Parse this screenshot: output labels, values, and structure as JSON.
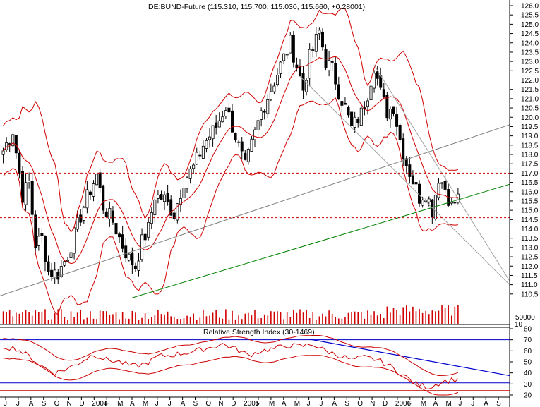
{
  "chart_data": [
    {
      "type": "candlestick",
      "title": "DE:BUND-Future (115.310, 115.700, 115.030, 115.660, +0.28001)",
      "y_axis": {
        "position": "right",
        "range": [
          110.0,
          126.0
        ],
        "ticks": [
          "126.0",
          "125.5",
          "125.0",
          "124.5",
          "124.0",
          "123.5",
          "123.0",
          "122.5",
          "122.0",
          "121.5",
          "121.0",
          "120.5",
          "120.0",
          "119.5",
          "119.0",
          "118.5",
          "118.0",
          "117.5",
          "117.0",
          "116.5",
          "116.0",
          "115.5",
          "115.0",
          "114.5",
          "114.0",
          "113.5",
          "113.0",
          "112.5",
          "112.0",
          "111.5",
          "111.0",
          "110.5"
        ]
      },
      "x_axis": {
        "labels": [
          "J",
          "J",
          "A",
          "S",
          "O",
          "N",
          "D",
          "2004",
          "F",
          "M",
          "A",
          "M",
          "J",
          "J",
          "A",
          "S",
          "O",
          "N",
          "D",
          "2005",
          "F",
          "M",
          "A",
          "M",
          "J",
          "J",
          "A",
          "S",
          "O",
          "N",
          "D",
          "2006",
          "F",
          "M",
          "A",
          "M",
          "J",
          "J",
          "A",
          "S"
        ]
      },
      "grid": false,
      "horizontal_levels": [
        117.0,
        114.6
      ],
      "anchor_series": [
        {
          "t": 0,
          "v": 118.2
        },
        {
          "t": 3,
          "v": 119.3
        },
        {
          "t": 6,
          "v": 115.8
        },
        {
          "t": 8,
          "v": 116.5
        },
        {
          "t": 10,
          "v": 113.2
        },
        {
          "t": 12,
          "v": 113.5
        },
        {
          "t": 14,
          "v": 111.7
        },
        {
          "t": 17,
          "v": 111.6
        },
        {
          "t": 20,
          "v": 112.6
        },
        {
          "t": 23,
          "v": 114.2
        },
        {
          "t": 26,
          "v": 115.7
        },
        {
          "t": 29,
          "v": 116.9
        },
        {
          "t": 31,
          "v": 115.2
        },
        {
          "t": 34,
          "v": 114.4
        },
        {
          "t": 37,
          "v": 113.1
        },
        {
          "t": 39,
          "v": 112.4
        },
        {
          "t": 41,
          "v": 112.0
        },
        {
          "t": 43,
          "v": 113.3
        },
        {
          "t": 45,
          "v": 114.0
        },
        {
          "t": 47,
          "v": 115.8
        },
        {
          "t": 50,
          "v": 115.6
        },
        {
          "t": 53,
          "v": 114.8
        },
        {
          "t": 56,
          "v": 116.6
        },
        {
          "t": 59,
          "v": 117.3
        },
        {
          "t": 62,
          "v": 118.5
        },
        {
          "t": 66,
          "v": 119.5
        },
        {
          "t": 69,
          "v": 120.6
        },
        {
          "t": 72,
          "v": 119.0
        },
        {
          "t": 75,
          "v": 117.3
        },
        {
          "t": 77,
          "v": 118.5
        },
        {
          "t": 80,
          "v": 120.3
        },
        {
          "t": 83,
          "v": 121.5
        },
        {
          "t": 86,
          "v": 122.8
        },
        {
          "t": 89,
          "v": 124.0
        },
        {
          "t": 91,
          "v": 122.8
        },
        {
          "t": 93,
          "v": 121.5
        },
        {
          "t": 95,
          "v": 123.2
        },
        {
          "t": 98,
          "v": 124.6
        },
        {
          "t": 100,
          "v": 123.0
        },
        {
          "t": 102,
          "v": 122.6
        },
        {
          "t": 104,
          "v": 121.4
        },
        {
          "t": 106,
          "v": 120.5
        },
        {
          "t": 108,
          "v": 119.4
        },
        {
          "t": 111,
          "v": 120.2
        },
        {
          "t": 113,
          "v": 121.3
        },
        {
          "t": 115,
          "v": 122.8
        },
        {
          "t": 117,
          "v": 121.3
        },
        {
          "t": 119,
          "v": 120.3
        },
        {
          "t": 121,
          "v": 120.6
        },
        {
          "t": 123,
          "v": 118.8
        },
        {
          "t": 125,
          "v": 117.5
        },
        {
          "t": 127,
          "v": 116.6
        },
        {
          "t": 129,
          "v": 115.7
        },
        {
          "t": 131,
          "v": 116.0
        },
        {
          "t": 133,
          "v": 115.0
        },
        {
          "t": 135,
          "v": 116.8
        },
        {
          "t": 137,
          "v": 116.2
        },
        {
          "t": 139,
          "v": 115.2
        },
        {
          "t": 141,
          "v": 115.66
        }
      ],
      "bollinger_width": 1.6,
      "trend_lines": [
        {
          "color": "#808080",
          "from": {
            "t": -1,
            "v": 110.4
          },
          "to": {
            "t": 157,
            "v": 119.6
          }
        },
        {
          "color": "#008000",
          "from": {
            "t": 40,
            "v": 110.3
          },
          "to": {
            "t": 157,
            "v": 116.4
          }
        },
        {
          "color": "#a0a0a0",
          "from": {
            "t": 92,
            "v": 122.2
          },
          "to": {
            "t": 157,
            "v": 111.0
          }
        },
        {
          "color": "#a0a0a0",
          "from": {
            "t": 115,
            "v": 122.8
          },
          "to": {
            "t": 157,
            "v": 111.2
          }
        }
      ]
    },
    {
      "type": "bar",
      "name": "volume",
      "y_axis": {
        "position": "right",
        "ticks": [
          "50000"
        ],
        "corner_label": "10"
      },
      "values_pattern": "daily volume bars"
    },
    {
      "type": "line",
      "title": "Relative Strength Index (30-1469)",
      "y_axis": {
        "position": "right",
        "range": [
          20,
          80
        ],
        "ticks": [
          "80",
          "70",
          "60",
          "50",
          "40",
          "30",
          "20"
        ]
      },
      "horizontal_levels_blue": [
        70,
        31
      ],
      "horizontal_levels_red": [
        24
      ],
      "trend_line_blue": {
        "from": {
          "t": 95,
          "v": 70.5
        },
        "to": {
          "t": 157,
          "v": 37.5
        }
      },
      "rsi_anchors": [
        {
          "t": 0,
          "v": 64
        },
        {
          "t": 4,
          "v": 62
        },
        {
          "t": 8,
          "v": 55
        },
        {
          "t": 12,
          "v": 46
        },
        {
          "t": 16,
          "v": 40
        },
        {
          "t": 20,
          "v": 44
        },
        {
          "t": 24,
          "v": 50
        },
        {
          "t": 28,
          "v": 57
        },
        {
          "t": 32,
          "v": 52
        },
        {
          "t": 36,
          "v": 50
        },
        {
          "t": 40,
          "v": 46
        },
        {
          "t": 44,
          "v": 48
        },
        {
          "t": 48,
          "v": 55
        },
        {
          "t": 52,
          "v": 56
        },
        {
          "t": 56,
          "v": 58
        },
        {
          "t": 60,
          "v": 60
        },
        {
          "t": 64,
          "v": 63
        },
        {
          "t": 68,
          "v": 66
        },
        {
          "t": 72,
          "v": 62
        },
        {
          "t": 76,
          "v": 56
        },
        {
          "t": 80,
          "v": 60
        },
        {
          "t": 84,
          "v": 62
        },
        {
          "t": 88,
          "v": 65
        },
        {
          "t": 92,
          "v": 64
        },
        {
          "t": 96,
          "v": 66
        },
        {
          "t": 100,
          "v": 60
        },
        {
          "t": 104,
          "v": 56
        },
        {
          "t": 108,
          "v": 52
        },
        {
          "t": 112,
          "v": 54
        },
        {
          "t": 116,
          "v": 52
        },
        {
          "t": 120,
          "v": 46
        },
        {
          "t": 124,
          "v": 38
        },
        {
          "t": 128,
          "v": 30
        },
        {
          "t": 132,
          "v": 27
        },
        {
          "t": 136,
          "v": 32
        },
        {
          "t": 140,
          "v": 34
        }
      ]
    }
  ]
}
